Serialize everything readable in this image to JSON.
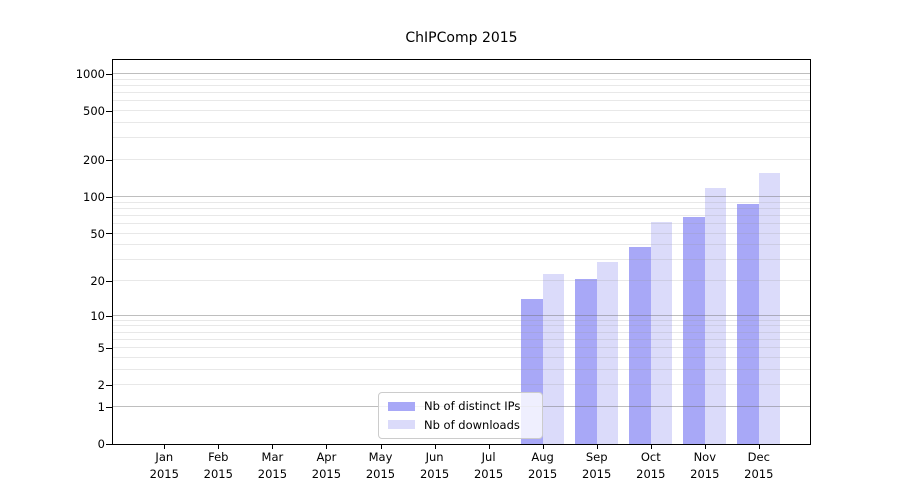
{
  "chart_data": {
    "type": "bar",
    "title": "ChIPComp 2015",
    "x_categories": [
      "Jan 2015",
      "Feb 2015",
      "Mar 2015",
      "Apr 2015",
      "May 2015",
      "Jun 2015",
      "Jul 2015",
      "Aug 2015",
      "Sep 2015",
      "Oct 2015",
      "Nov 2015",
      "Dec 2015"
    ],
    "x_tick_line1": [
      "Jan",
      "Feb",
      "Mar",
      "Apr",
      "May",
      "Jun",
      "Jul",
      "Aug",
      "Sep",
      "Oct",
      "Nov",
      "Dec"
    ],
    "x_tick_line2": "2015",
    "series": [
      {
        "name": "Nb of distinct IPs",
        "color": "#a8a8f7",
        "values": [
          null,
          null,
          null,
          null,
          null,
          null,
          null,
          14,
          21,
          39,
          68,
          88
        ]
      },
      {
        "name": "Nb of downloads",
        "color": "#dbdbfa",
        "values": [
          null,
          null,
          null,
          null,
          null,
          null,
          null,
          23,
          29,
          62,
          118,
          158
        ]
      }
    ],
    "y_scale": "log1p",
    "y_ticks": [
      0,
      1,
      2,
      5,
      10,
      20,
      50,
      100,
      200,
      500,
      1000
    ],
    "y_major_gridlines": [
      1,
      10,
      100,
      1000
    ],
    "y_minor_gridlines": [
      2,
      3,
      4,
      5,
      6,
      7,
      8,
      9,
      20,
      30,
      40,
      50,
      60,
      70,
      80,
      90,
      200,
      300,
      400,
      500,
      600,
      700,
      800,
      900
    ],
    "ylim": [
      0,
      1300
    ],
    "legend_position": "lower-center",
    "grid": true
  },
  "legend": {
    "items": [
      {
        "label": "Nb of distinct IPs",
        "color": "#a8a8f7"
      },
      {
        "label": "Nb of downloads",
        "color": "#dbdbfa"
      }
    ]
  },
  "colors": {
    "bar_distinct_ips": "#a8a8f7",
    "bar_downloads": "#dbdbfa",
    "major_grid": "rgba(110,110,110,0.45)",
    "minor_grid": "rgba(150,150,150,0.22)",
    "axis": "#000000",
    "legend_border": "#cccccc"
  }
}
